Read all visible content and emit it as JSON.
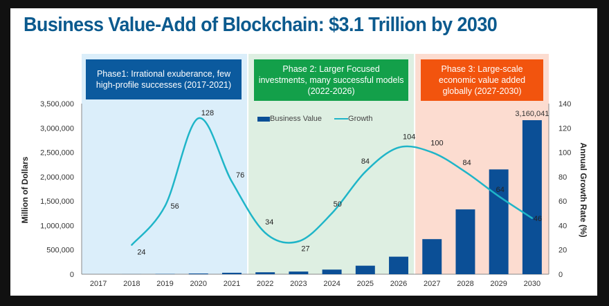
{
  "page": {
    "title": "Business Value-Add of Blockchain: $3.1 Trillion by 2030"
  },
  "phases": [
    {
      "label": "Phase1: Irrational exuberance, few high-profile successes (2017-2021)",
      "start": "2017",
      "end": "2021",
      "box_color": "#0b5a9e",
      "bg_color": "#dbeefa"
    },
    {
      "label": "Phase 2: Larger Focused investments, many successful models (2022-2026)",
      "start": "2022",
      "end": "2026",
      "box_color": "#13a04a",
      "bg_color": "#deefe2"
    },
    {
      "label": "Phase 3: Large-scale economic value added globally (2027-2030)",
      "start": "2027",
      "end": "2030",
      "box_color": "#f2540e",
      "bg_color": "#fcdcd0"
    }
  ],
  "chart_data": {
    "type": "bar",
    "title": "Business Value-Add of Blockchain: $3.1 Trillion by 2030",
    "categories": [
      "2017",
      "2018",
      "2019",
      "2020",
      "2021",
      "2022",
      "2023",
      "2024",
      "2025",
      "2026",
      "2027",
      "2028",
      "2029",
      "2030"
    ],
    "series": [
      {
        "name": "Business Value",
        "type": "bar",
        "axis": "left",
        "color": "#0b4f96",
        "values": [
          0,
          1000,
          5000,
          15000,
          30000,
          40000,
          55000,
          95000,
          175000,
          360000,
          720000,
          1330000,
          2150000,
          3160041
        ]
      },
      {
        "name": "Growth",
        "type": "line",
        "axis": "right",
        "color": "#1fb5c8",
        "values": [
          null,
          24,
          56,
          128,
          76,
          34,
          27,
          50,
          84,
          104,
          100,
          84,
          64,
          46
        ]
      }
    ],
    "bar_data_labels": {
      "2030": "3,160,041"
    },
    "line_data_labels": [
      "24",
      "56",
      "128",
      "76",
      "34",
      "27",
      "50",
      "84",
      "104",
      "100",
      "84",
      "64",
      "46"
    ],
    "ylabel": "Million of Dollars",
    "y2label": "Annual Growth Rate (%)",
    "ylim": [
      0,
      3500000
    ],
    "y2lim": [
      0,
      140
    ],
    "yticks": [
      "0",
      "500,000",
      "1,000,000",
      "1,500,000",
      "2,000,000",
      "2,500,000",
      "3,000,000",
      "3,500,000"
    ],
    "y2ticks": [
      "0",
      "20",
      "40",
      "60",
      "80",
      "100",
      "120",
      "140"
    ],
    "legend": {
      "position": "top-center",
      "entries": [
        "Business Value",
        "Growth"
      ]
    },
    "grid": false
  }
}
